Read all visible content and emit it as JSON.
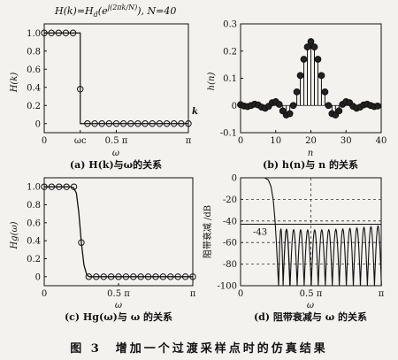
{
  "figure_caption": "图 3　增加一个过渡采样点时的仿真结果",
  "formula": "H(k)=Hd(e^j(2πk/N)), N=40",
  "chart_data": [
    {
      "id": "a",
      "type": "scatter",
      "caption": "(a) H(k)与ω的关系",
      "ylabel": "H(k)",
      "xlabel": "ω",
      "xlim": [
        0,
        3.1416
      ],
      "ylim": [
        -0.1,
        1.1
      ],
      "xticks": [
        {
          "v": 0,
          "label": "0"
        },
        {
          "v": 0.785,
          "label": "ωc"
        },
        {
          "v": 1.571,
          "label": "0.5 π"
        },
        {
          "v": 3.1416,
          "label": "π"
        }
      ],
      "yticks": [
        {
          "v": 0,
          "label": "0"
        },
        {
          "v": 0.2,
          "label": "0.2"
        },
        {
          "v": 0.4,
          "label": "0.4"
        },
        {
          "v": 0.6,
          "label": "0.6"
        },
        {
          "v": 0.8,
          "label": "0.8"
        },
        {
          "v": 1.0,
          "label": "1.0"
        }
      ],
      "corner_label": "k",
      "points": [
        [
          0.0,
          1.0
        ],
        [
          0.157,
          1.0
        ],
        [
          0.314,
          1.0
        ],
        [
          0.471,
          1.0
        ],
        [
          0.628,
          1.0
        ],
        [
          0.785,
          0.38
        ],
        [
          0.942,
          0.0
        ],
        [
          1.1,
          0.0
        ],
        [
          1.257,
          0.0
        ],
        [
          1.414,
          0.0
        ],
        [
          1.571,
          0.0
        ],
        [
          1.728,
          0.0
        ],
        [
          1.885,
          0.0
        ],
        [
          2.042,
          0.0
        ],
        [
          2.199,
          0.0
        ],
        [
          2.356,
          0.0
        ],
        [
          2.513,
          0.0
        ],
        [
          2.67,
          0.0
        ],
        [
          2.827,
          0.0
        ],
        [
          2.985,
          0.0
        ],
        [
          3.1416,
          0.0
        ]
      ],
      "ideal": [
        [
          0,
          1.0
        ],
        [
          0.785,
          1.0
        ],
        [
          0.785,
          0.0
        ],
        [
          3.1416,
          0.0
        ]
      ]
    },
    {
      "id": "b",
      "type": "stem",
      "caption": "(b) h(n)与 n 的关系",
      "ylabel": "h(n)",
      "xlabel": "n",
      "xlim": [
        0,
        40
      ],
      "ylim": [
        -0.1,
        0.3
      ],
      "xticks": [
        {
          "v": 0,
          "label": "0"
        },
        {
          "v": 10,
          "label": "10"
        },
        {
          "v": 20,
          "label": "20"
        },
        {
          "v": 30,
          "label": "30"
        },
        {
          "v": 40,
          "label": "40"
        }
      ],
      "yticks": [
        {
          "v": -0.1,
          "label": "-0.1"
        },
        {
          "v": 0,
          "label": "0"
        },
        {
          "v": 0.1,
          "label": "0.1"
        },
        {
          "v": 0.2,
          "label": "0.2"
        },
        {
          "v": 0.3,
          "label": "0.3"
        }
      ],
      "values": [
        0.003,
        -0.002,
        -0.004,
        0.0,
        0.005,
        0.002,
        -0.006,
        -0.01,
        -0.003,
        0.01,
        0.014,
        0.004,
        -0.02,
        -0.035,
        -0.03,
        0.0,
        0.05,
        0.11,
        0.17,
        0.215,
        0.235,
        0.215,
        0.17,
        0.11,
        0.05,
        0.0,
        -0.03,
        -0.035,
        -0.02,
        0.004,
        0.014,
        0.01,
        -0.003,
        -0.01,
        -0.006,
        0.002,
        0.005,
        0.0,
        -0.004,
        -0.002
      ]
    },
    {
      "id": "c",
      "type": "line",
      "caption": "(c) Hg(ω)与 ω 的关系",
      "ylabel": "Hg(ω)",
      "xlabel": "ω",
      "xlim": [
        0,
        3.1416
      ],
      "ylim": [
        -0.1,
        1.1
      ],
      "xticks": [
        {
          "v": 0,
          "label": "0"
        },
        {
          "v": 1.571,
          "label": "0.5 π"
        },
        {
          "v": 3.1416,
          "label": "π"
        }
      ],
      "yticks": [
        {
          "v": 0,
          "label": "0"
        },
        {
          "v": 0.2,
          "label": "0.2"
        },
        {
          "v": 0.4,
          "label": "0.4"
        },
        {
          "v": 0.6,
          "label": "0.6"
        },
        {
          "v": 0.8,
          "label": "0.8"
        },
        {
          "v": 1.0,
          "label": "1.0"
        }
      ],
      "markers": [
        [
          0.0,
          1.0
        ],
        [
          0.157,
          1.0
        ],
        [
          0.314,
          1.0
        ],
        [
          0.471,
          1.0
        ],
        [
          0.628,
          1.0
        ],
        [
          0.785,
          0.38
        ],
        [
          0.942,
          0.0
        ],
        [
          1.1,
          0.0
        ],
        [
          1.257,
          0.0
        ],
        [
          1.414,
          0.0
        ],
        [
          1.571,
          0.0
        ],
        [
          1.728,
          0.0
        ],
        [
          1.885,
          0.0
        ],
        [
          2.042,
          0.0
        ],
        [
          2.199,
          0.0
        ],
        [
          2.356,
          0.0
        ],
        [
          2.513,
          0.0
        ],
        [
          2.67,
          0.0
        ],
        [
          2.827,
          0.0
        ],
        [
          2.985,
          0.0
        ],
        [
          3.1416,
          0.0
        ]
      ],
      "curve": [
        [
          0.0,
          1.0
        ],
        [
          0.55,
          1.0
        ],
        [
          0.62,
          0.99
        ],
        [
          0.68,
          0.93
        ],
        [
          0.73,
          0.72
        ],
        [
          0.785,
          0.38
        ],
        [
          0.84,
          0.13
        ],
        [
          0.9,
          0.02
        ],
        [
          0.95,
          0.0
        ],
        [
          3.1416,
          0.0
        ]
      ]
    },
    {
      "id": "d",
      "type": "line",
      "caption": "(d) 阻带衰减与 ω 的关系",
      "ylabel": "阻带衰减 /dB",
      "xlabel": "ω",
      "xlim": [
        0,
        3.1416
      ],
      "ylim": [
        -100,
        0
      ],
      "xticks": [
        {
          "v": 0,
          "label": "0"
        },
        {
          "v": 1.571,
          "label": "0.5 π"
        },
        {
          "v": 3.1416,
          "label": "π"
        }
      ],
      "yticks": [
        {
          "v": 0,
          "label": "0"
        },
        {
          "v": -20,
          "label": "-20"
        },
        {
          "v": -40,
          "label": "-40"
        },
        {
          "v": -60,
          "label": "-60"
        },
        {
          "v": -80,
          "label": "-80"
        },
        {
          "v": -100,
          "label": "-100"
        }
      ],
      "annotation": "-43",
      "stopband_level": -43,
      "grid": true
    }
  ]
}
